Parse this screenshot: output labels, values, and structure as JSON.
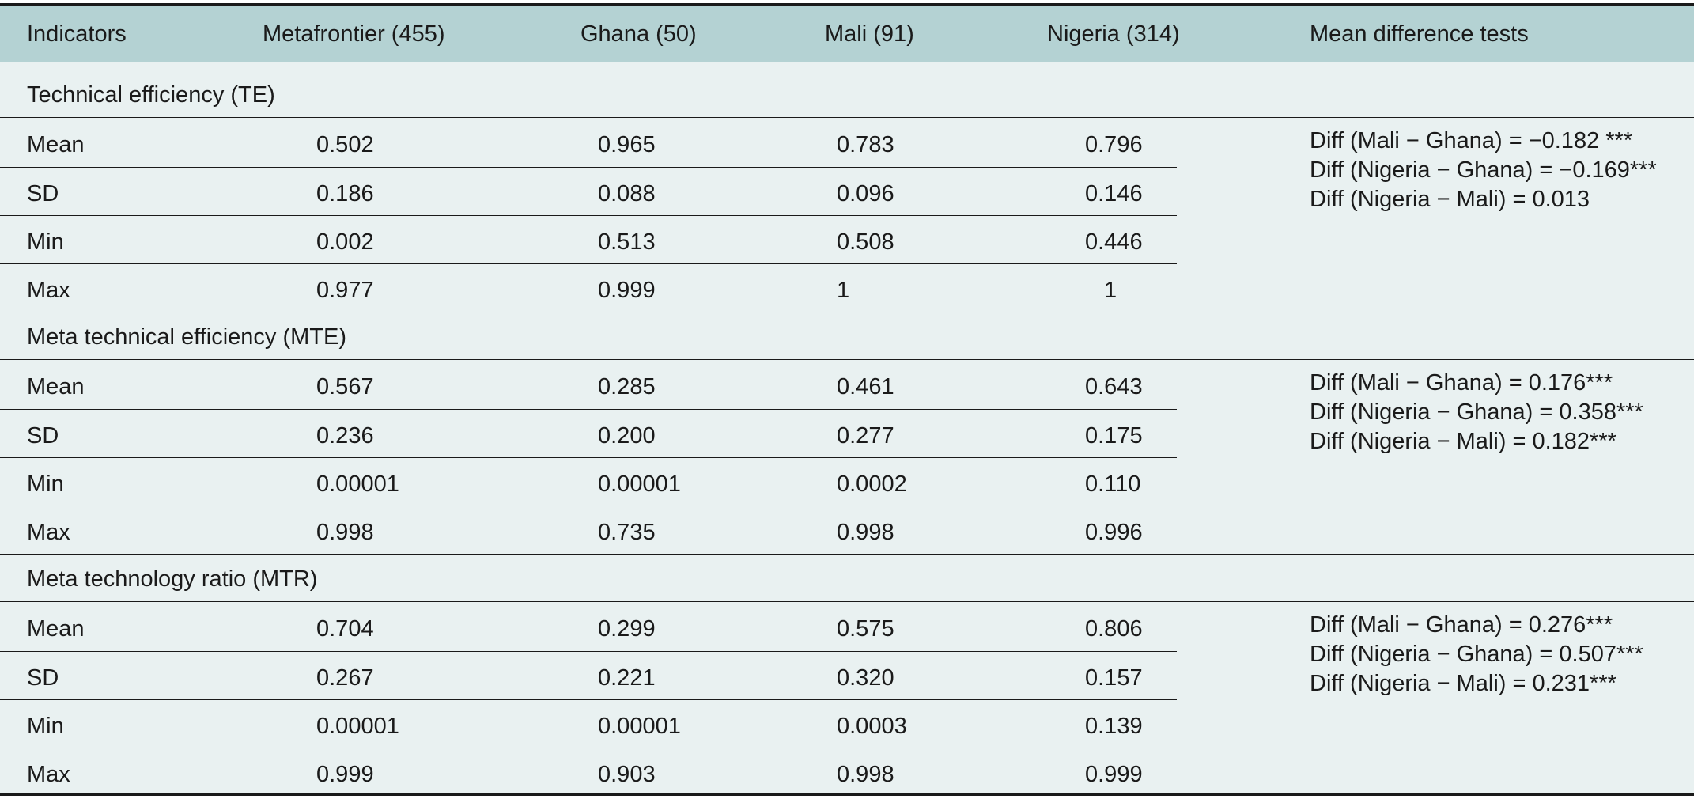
{
  "headers": [
    "Indicators",
    "Metafrontier (455)",
    "Ghana (50)",
    "Mali (91)",
    "Nigeria (314)",
    "Mean difference tests"
  ],
  "sections": [
    {
      "title": "Technical efficiency (TE)",
      "rows": [
        {
          "label": "Mean",
          "values": [
            "0.502",
            "0.965",
            "0.783",
            "0.796"
          ]
        },
        {
          "label": "SD",
          "values": [
            "0.186",
            "0.088",
            "0.096",
            "0.146"
          ]
        },
        {
          "label": "Min",
          "values": [
            "0.002",
            "0.513",
            "0.508",
            "0.446"
          ]
        },
        {
          "label": "Max",
          "values": [
            "0.977",
            "0.999",
            "1",
            "1"
          ]
        }
      ],
      "tests": [
        "Diff (Mali − Ghana) = −0.182 ***",
        "Diff (Nigeria − Ghana) = −0.169***",
        "Diff (Nigeria − Mali) = 0.013"
      ]
    },
    {
      "title": "Meta technical efficiency (MTE)",
      "rows": [
        {
          "label": "Mean",
          "values": [
            "0.567",
            "0.285",
            "0.461",
            "0.643"
          ]
        },
        {
          "label": "SD",
          "values": [
            "0.236",
            "0.200",
            "0.277",
            "0.175"
          ]
        },
        {
          "label": "Min",
          "values": [
            "0.00001",
            "0.00001",
            "0.0002",
            "0.110"
          ]
        },
        {
          "label": "Max",
          "values": [
            "0.998",
            "0.735",
            "0.998",
            "0.996"
          ]
        }
      ],
      "tests": [
        "Diff (Mali − Ghana) = 0.176***",
        "Diff (Nigeria − Ghana) = 0.358***",
        "Diff (Nigeria − Mali) = 0.182***"
      ]
    },
    {
      "title": "Meta technology ratio (MTR)",
      "rows": [
        {
          "label": "Mean",
          "values": [
            "0.704",
            "0.299",
            "0.575",
            "0.806"
          ]
        },
        {
          "label": "SD",
          "values": [
            "0.267",
            "0.221",
            "0.320",
            "0.157"
          ]
        },
        {
          "label": "Min",
          "values": [
            "0.00001",
            "0.00001",
            "0.0003",
            "0.139"
          ]
        },
        {
          "label": "Max",
          "values": [
            "0.999",
            "0.903",
            "0.998",
            "0.999"
          ]
        }
      ],
      "tests": [
        "Diff (Mali − Ghana) = 0.276***",
        "Diff (Nigeria − Ghana) = 0.507***",
        "Diff (Nigeria − Mali) = 0.231***"
      ]
    }
  ]
}
